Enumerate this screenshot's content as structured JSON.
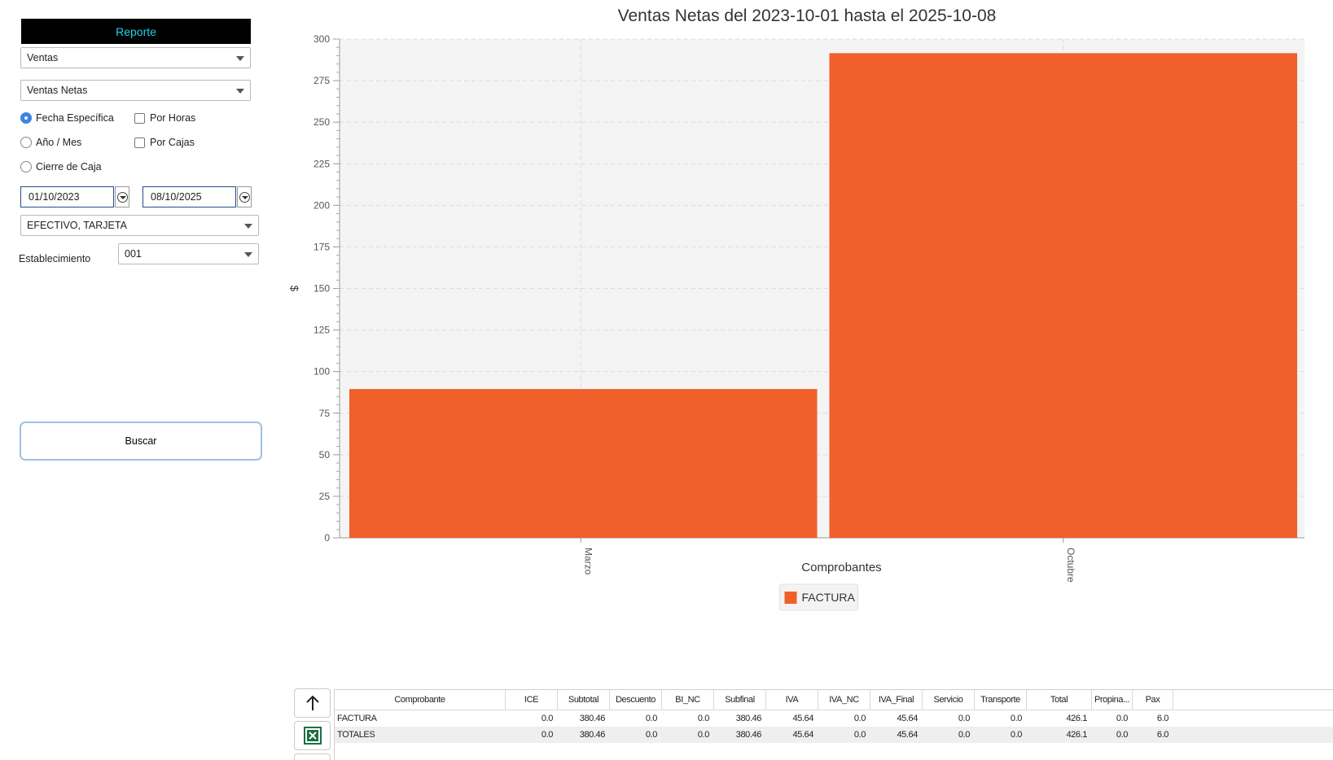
{
  "sidebar": {
    "report_header": "Reporte",
    "report_type": "Ventas",
    "report_subtype": "Ventas Netas",
    "options": {
      "fecha_especifica": "Fecha Específica",
      "anio_mes": "Año / Mes",
      "cierre_caja": "Cierre de Caja",
      "por_horas": "Por Horas",
      "por_cajas": "Por Cajas"
    },
    "date_from": "01/10/2023",
    "date_to": "08/10/2025",
    "payment": "EFECTIVO, TARJETA",
    "establecimiento_label": "Establecimiento",
    "establecimiento_value": "001",
    "search_button": "Buscar"
  },
  "chart_data": {
    "type": "bar",
    "title": "Ventas Netas del 2023-10-01 hasta el 2025-10-08",
    "xlabel": "Comprobantes",
    "ylabel": "$",
    "categories": [
      "Marzo",
      "Octubre"
    ],
    "series": [
      {
        "name": "FACTURA",
        "values": [
          89.5,
          291.5
        ],
        "color": "#f15f2b"
      }
    ],
    "ylim": [
      0,
      300
    ],
    "yticks": [
      0,
      25,
      50,
      75,
      100,
      125,
      150,
      175,
      200,
      225,
      250,
      275,
      300
    ],
    "grid": true,
    "legend": "bottom-center"
  },
  "table": {
    "columns": [
      "Comprobante",
      "ICE",
      "Subtotal",
      "Descuento",
      "BI_NC",
      "Subfinal",
      "IVA",
      "IVA_NC",
      "IVA_Final",
      "Servicio",
      "Transporte",
      "Total",
      "Propina...",
      "Pax"
    ],
    "rows": [
      [
        "FACTURA",
        "0.0",
        "380.46",
        "0.0",
        "0.0",
        "380.46",
        "45.64",
        "0.0",
        "45.64",
        "0.0",
        "0.0",
        "426.1",
        "0.0",
        "6.0"
      ],
      [
        "TOTALES",
        "0.0",
        "380.46",
        "0.0",
        "0.0",
        "380.46",
        "45.64",
        "0.0",
        "45.64",
        "0.0",
        "0.0",
        "426.1",
        "0.0",
        "6.0"
      ]
    ]
  },
  "icons": {
    "up": "arrow-up-icon",
    "excel": "excel-icon"
  }
}
